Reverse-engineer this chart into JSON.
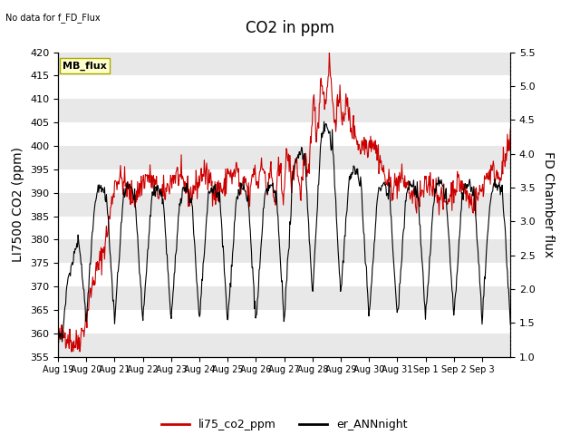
{
  "title": "CO2 in ppm",
  "xlabel": "",
  "ylabel_left": "LI7500 CO2 (ppm)",
  "ylabel_right": "FD Chamber flux",
  "ylim_left": [
    355,
    420
  ],
  "ylim_right": [
    1.0,
    5.5
  ],
  "yticks_left": [
    355,
    360,
    365,
    370,
    375,
    380,
    385,
    390,
    395,
    400,
    405,
    410,
    415,
    420
  ],
  "yticks_right": [
    1.0,
    1.5,
    2.0,
    2.5,
    3.0,
    3.5,
    4.0,
    4.5,
    5.0,
    5.5
  ],
  "xticklabels": [
    "Aug 19",
    "Aug 20",
    "Aug 21",
    "Aug 22",
    "Aug 23",
    "Aug 24",
    "Aug 25",
    "Aug 26",
    "Aug 27",
    "Aug 28",
    "Aug 29",
    "Aug 30",
    "Aug 31",
    "Sep 1",
    "Sep 2",
    "Sep 3"
  ],
  "no_data_text": "No data for f_FD_Flux",
  "mb_flux_label": "MB_flux",
  "legend_labels": [
    "li75_co2_ppm",
    "er_ANNnight"
  ],
  "line_color_red": "#cc0000",
  "line_color_black": "#000000",
  "band_color": "#e8e8e8",
  "title_fontsize": 12,
  "axis_fontsize": 10,
  "tick_fontsize": 8
}
